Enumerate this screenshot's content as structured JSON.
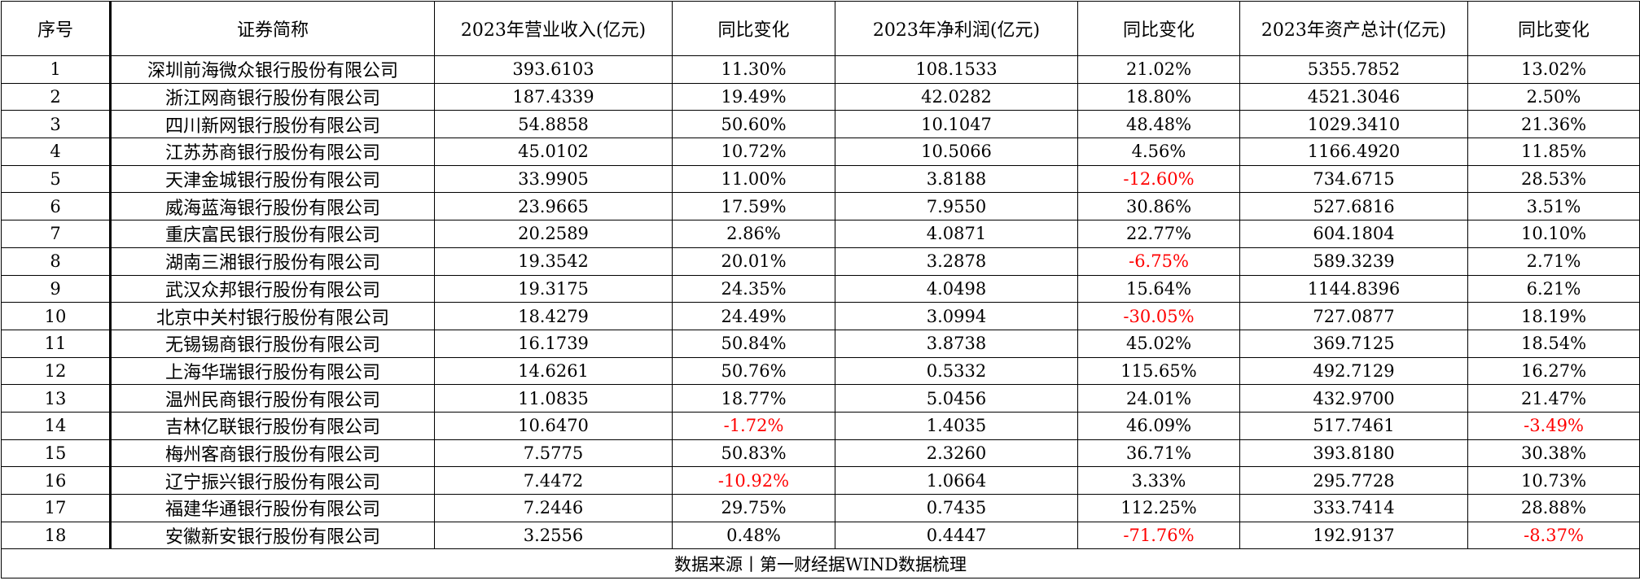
{
  "headers": [
    "序号",
    "证券简称",
    "2023年营业收入(亿元)",
    "同比变化",
    "2023年净利润(亿元)",
    "同比变化",
    "2023年资产总计(亿元)",
    "同比变化"
  ],
  "rows": [
    {
      "idx": "1",
      "name": "深圳前海微众银行股份有限公司",
      "rev": "393.6103",
      "rev_yoy": "11.30%",
      "np": "108.1533",
      "np_yoy": "21.02%",
      "assets": "5355.7852",
      "assets_yoy": "13.02%"
    },
    {
      "idx": "2",
      "name": "浙江网商银行股份有限公司",
      "rev": "187.4339",
      "rev_yoy": "19.49%",
      "np": "42.0282",
      "np_yoy": "18.80%",
      "assets": "4521.3046",
      "assets_yoy": "2.50%"
    },
    {
      "idx": "3",
      "name": "四川新网银行股份有限公司",
      "rev": "54.8858",
      "rev_yoy": "50.60%",
      "np": "10.1047",
      "np_yoy": "48.48%",
      "assets": "1029.3410",
      "assets_yoy": "21.36%"
    },
    {
      "idx": "4",
      "name": "江苏苏商银行股份有限公司",
      "rev": "45.0102",
      "rev_yoy": "10.72%",
      "np": "10.5066",
      "np_yoy": "4.56%",
      "assets": "1166.4920",
      "assets_yoy": "11.85%"
    },
    {
      "idx": "5",
      "name": "天津金城银行股份有限公司",
      "rev": "33.9905",
      "rev_yoy": "11.00%",
      "np": "3.8188",
      "np_yoy": "-12.60%",
      "assets": "734.6715",
      "assets_yoy": "28.53%"
    },
    {
      "idx": "6",
      "name": "威海蓝海银行股份有限公司",
      "rev": "23.9665",
      "rev_yoy": "17.59%",
      "np": "7.9550",
      "np_yoy": "30.86%",
      "assets": "527.6816",
      "assets_yoy": "3.51%"
    },
    {
      "idx": "7",
      "name": "重庆富民银行股份有限公司",
      "rev": "20.2589",
      "rev_yoy": "2.86%",
      "np": "4.0871",
      "np_yoy": "22.77%",
      "assets": "604.1804",
      "assets_yoy": "10.10%"
    },
    {
      "idx": "8",
      "name": "湖南三湘银行股份有限公司",
      "rev": "19.3542",
      "rev_yoy": "20.01%",
      "np": "3.2878",
      "np_yoy": "-6.75%",
      "assets": "589.3239",
      "assets_yoy": "2.71%"
    },
    {
      "idx": "9",
      "name": "武汉众邦银行股份有限公司",
      "rev": "19.3175",
      "rev_yoy": "24.35%",
      "np": "4.0498",
      "np_yoy": "15.64%",
      "assets": "1144.8396",
      "assets_yoy": "6.21%"
    },
    {
      "idx": "10",
      "name": "北京中关村银行股份有限公司",
      "rev": "18.4279",
      "rev_yoy": "24.49%",
      "np": "3.0994",
      "np_yoy": "-30.05%",
      "assets": "727.0877",
      "assets_yoy": "18.19%"
    },
    {
      "idx": "11",
      "name": "无锡锡商银行股份有限公司",
      "rev": "16.1739",
      "rev_yoy": "50.84%",
      "np": "3.8738",
      "np_yoy": "45.02%",
      "assets": "369.7125",
      "assets_yoy": "18.54%"
    },
    {
      "idx": "12",
      "name": "上海华瑞银行股份有限公司",
      "rev": "14.6261",
      "rev_yoy": "50.76%",
      "np": "0.5332",
      "np_yoy": "115.65%",
      "assets": "492.7129",
      "assets_yoy": "16.27%"
    },
    {
      "idx": "13",
      "name": "温州民商银行股份有限公司",
      "rev": "11.0835",
      "rev_yoy": "18.77%",
      "np": "5.0456",
      "np_yoy": "24.01%",
      "assets": "432.9700",
      "assets_yoy": "21.47%"
    },
    {
      "idx": "14",
      "name": "吉林亿联银行股份有限公司",
      "rev": "10.6470",
      "rev_yoy": "-1.72%",
      "np": "1.4035",
      "np_yoy": "46.09%",
      "assets": "517.7461",
      "assets_yoy": "-3.49%"
    },
    {
      "idx": "15",
      "name": "梅州客商银行股份有限公司",
      "rev": "7.5775",
      "rev_yoy": "50.83%",
      "np": "2.3260",
      "np_yoy": "36.71%",
      "assets": "393.8180",
      "assets_yoy": "30.38%"
    },
    {
      "idx": "16",
      "name": "辽宁振兴银行股份有限公司",
      "rev": "7.4472",
      "rev_yoy": "-10.92%",
      "np": "1.0664",
      "np_yoy": "3.33%",
      "assets": "295.7728",
      "assets_yoy": "10.73%"
    },
    {
      "idx": "17",
      "name": "福建华通银行股份有限公司",
      "rev": "7.2446",
      "rev_yoy": "29.75%",
      "np": "0.7435",
      "np_yoy": "112.25%",
      "assets": "333.7414",
      "assets_yoy": "28.88%"
    },
    {
      "idx": "18",
      "name": "安徽新安银行股份有限公司",
      "rev": "3.2556",
      "rev_yoy": "0.48%",
      "np": "0.4447",
      "np_yoy": "-71.76%",
      "assets": "192.9137",
      "assets_yoy": "-8.37%"
    }
  ],
  "source_note": "数据来源丨第一财经据WIND数据梳理",
  "colors": {
    "negative": "#ff0000",
    "border": "#000000"
  }
}
